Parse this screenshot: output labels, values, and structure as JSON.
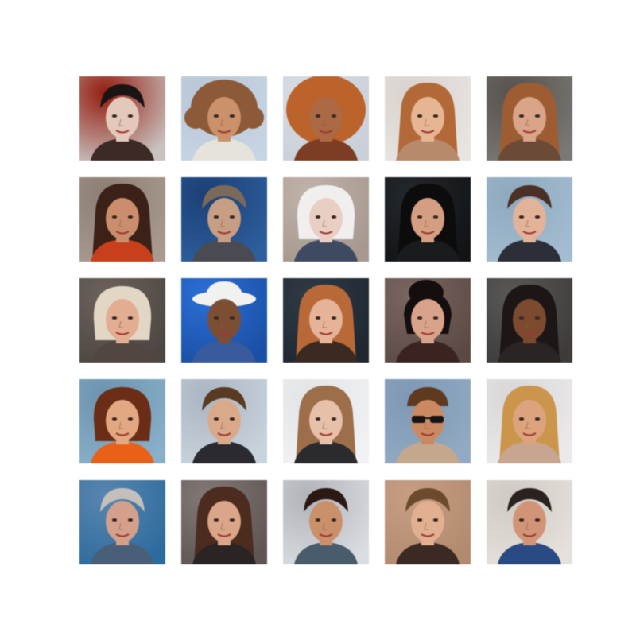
{
  "figure": {
    "background": "#ffffff",
    "rows": 5,
    "cols": 5,
    "tiles": [
      {
        "bg": "#c9c2c0",
        "accent": "#8f1e12",
        "hair": "#1a1414",
        "skin": "#e2c8bc",
        "cloth": "#3a2a26",
        "style": "short"
      },
      {
        "bg": "#c8d4e2",
        "accent": "#b9c6d6",
        "hair": "#8a5a3a",
        "skin": "#c8916c",
        "cloth": "#e6e2dc",
        "style": "curly"
      },
      {
        "bg": "#c9d0d8",
        "accent": "#d7dde4",
        "hair": "#b8632e",
        "skin": "#a86a46",
        "cloth": "#7a3e24",
        "style": "afro"
      },
      {
        "bg": "#e7e4e2",
        "accent": "#d9d3cf",
        "hair": "#b06a3a",
        "skin": "#e4b596",
        "cloth": "#b58a6e",
        "style": "long"
      },
      {
        "bg": "#7a7874",
        "accent": "#56524e",
        "hair": "#9b5d35",
        "skin": "#d7a489",
        "cloth": "#6a4a38",
        "style": "long"
      },
      {
        "bg": "#a89a90",
        "accent": "#8c7e76",
        "hair": "#3a2118",
        "skin": "#c88e70",
        "cloth": "#c2411e",
        "style": "long"
      },
      {
        "bg": "#2f5f9a",
        "accent": "#1e3f72",
        "hair": "#7a6a5a",
        "skin": "#c49e86",
        "cloth": "#4a4a52",
        "style": "short"
      },
      {
        "bg": "#a59890",
        "accent": "#bfb3aa",
        "hair": "#f1efee",
        "skin": "#e8cfc4",
        "cloth": "#3e4a60",
        "style": "bob"
      },
      {
        "bg": "#121416",
        "accent": "#23282c",
        "hair": "#0d0c0d",
        "skin": "#d29e84",
        "cloth": "#1a1b1d",
        "style": "long"
      },
      {
        "bg": "#a4bccf",
        "accent": "#8fa9bd",
        "hair": "#4a3126",
        "skin": "#e0b39b",
        "cloth": "#2c2e38",
        "style": "short"
      },
      {
        "bg": "#4e4642",
        "accent": "#6b625c",
        "hair": "#e2d7c6",
        "skin": "#e0ad92",
        "cloth": "#514642",
        "style": "bob"
      },
      {
        "bg": "#1c4fa0",
        "accent": "#2f6fd0",
        "hair": "#f1f1ef",
        "skin": "#7a4e36",
        "cloth": "#3a5a9a",
        "style": "hat"
      },
      {
        "bg": "#1f2830",
        "accent": "#2f3a44",
        "hair": "#b56a3a",
        "skin": "#e5b39a",
        "cloth": "#3a2a22",
        "style": "long"
      },
      {
        "bg": "#5a4a44",
        "accent": "#7a6660",
        "hair": "#140f0e",
        "skin": "#d7a28c",
        "cloth": "#3a2420",
        "style": "updo"
      },
      {
        "bg": "#3e3c3a",
        "accent": "#5a5856",
        "hair": "#1c1716",
        "skin": "#7a4a30",
        "cloth": "#2a2422",
        "style": "long"
      },
      {
        "bg": "#8ab0c7",
        "accent": "#6f93ad",
        "hair": "#6a2e18",
        "skin": "#e0a884",
        "cloth": "#e4621e",
        "style": "bob"
      },
      {
        "bg": "#c9d3dc",
        "accent": "#aab6c2",
        "hair": "#5a3a24",
        "skin": "#d8a98c",
        "cloth": "#2a2a30",
        "style": "short"
      },
      {
        "bg": "#f1f2f3",
        "accent": "#e3e4e6",
        "hair": "#9a6f4c",
        "skin": "#e5c0ab",
        "cloth": "#2b2b2f",
        "style": "long"
      },
      {
        "bg": "#93aac2",
        "accent": "#7f98b3",
        "hair": "#5e3a20",
        "skin": "#c88a64",
        "cloth": "#c2a88e",
        "style": "glasses"
      },
      {
        "bg": "#ece9ea",
        "accent": "#d9d6d8",
        "hair": "#c9954f",
        "skin": "#d9a47e",
        "cloth": "#c7a58f",
        "style": "long"
      },
      {
        "bg": "#2f6b9a",
        "accent": "#5b86ad",
        "hair": "#c3c0bc",
        "skin": "#d2a08c",
        "cloth": "#4a5e78",
        "style": "short"
      },
      {
        "bg": "#5f5552",
        "accent": "#827875",
        "hair": "#4a2c20",
        "skin": "#d8a58a",
        "cloth": "#2a2424",
        "style": "long"
      },
      {
        "bg": "#d9dde2",
        "accent": "#b0b4b8",
        "hair": "#2a1a14",
        "skin": "#c8906c",
        "cloth": "#4a5c6a",
        "style": "short"
      },
      {
        "bg": "#b08a70",
        "accent": "#c49e86",
        "hair": "#6a4a30",
        "skin": "#dfb092",
        "cloth": "#3a2a24",
        "style": "short"
      },
      {
        "bg": "#e6e1dc",
        "accent": "#cfc9c3",
        "hair": "#2a2220",
        "skin": "#cf9578",
        "cloth": "#2a4a80",
        "style": "short"
      }
    ]
  }
}
